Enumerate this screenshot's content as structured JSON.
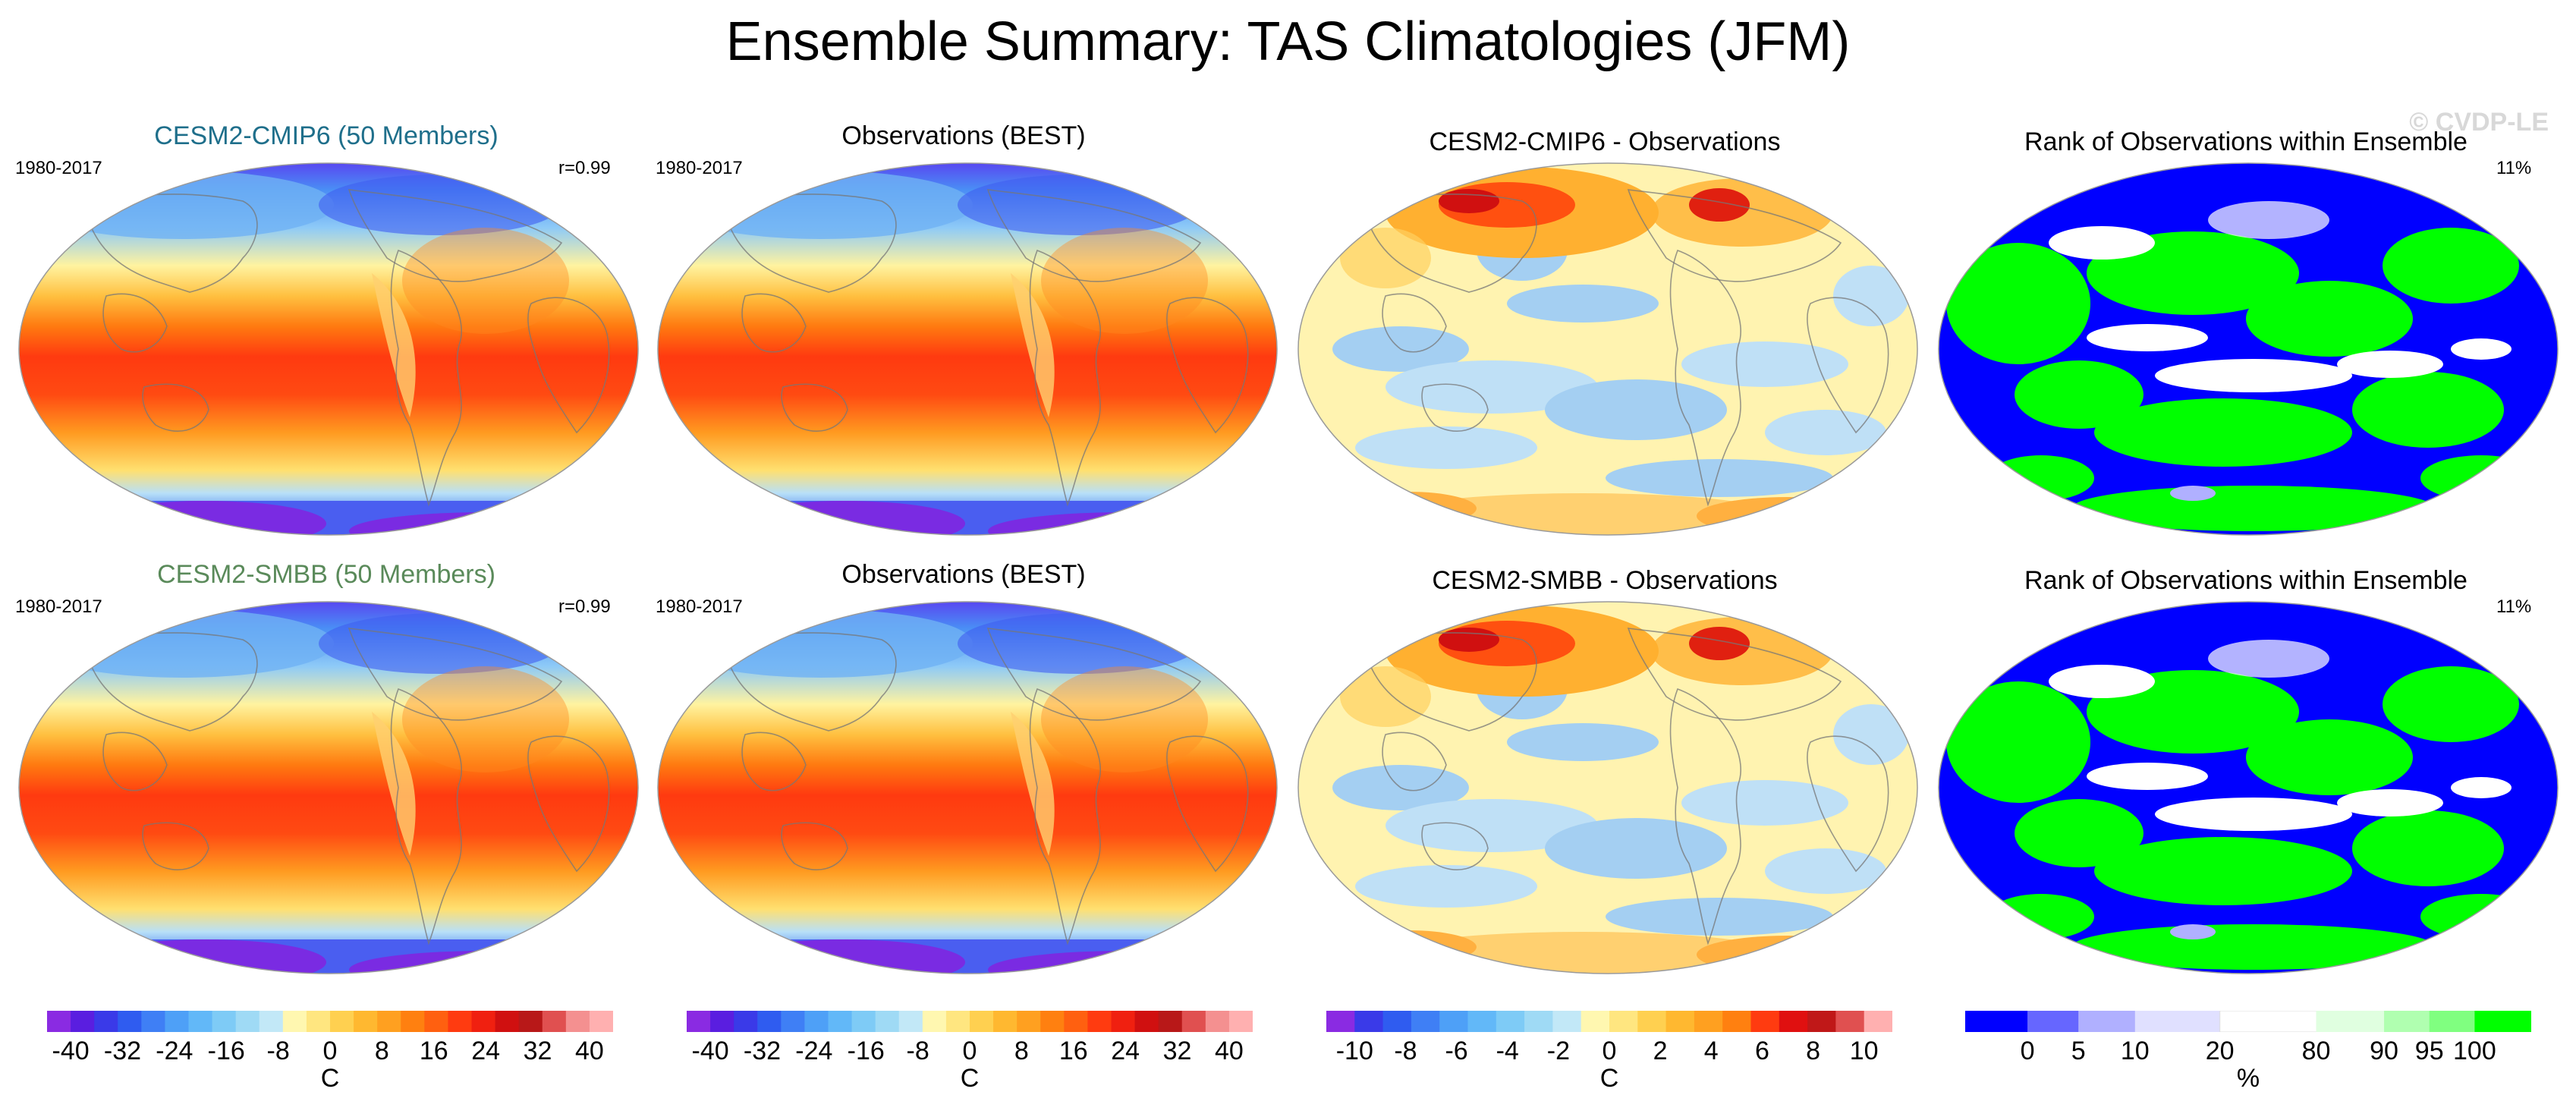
{
  "title": "Ensemble Summary: TAS Climatologies (JFM)",
  "watermark": "© CVDP-LE",
  "rows": [
    {
      "panels": [
        {
          "title": "CESM2-CMIP6 (50 Members)",
          "title_color": "#1f6f8b",
          "left_label": "1980-2017",
          "right_label": "r=0.99",
          "field": "clim"
        },
        {
          "title": "Observations (BEST)",
          "title_color": "#000000",
          "left_label": "1980-2017",
          "right_label": "",
          "field": "clim"
        },
        {
          "title": "CESM2-CMIP6 - Observations",
          "title_color": "#000000",
          "left_label": "",
          "right_label": "",
          "field": "diff"
        },
        {
          "title": "Rank of Observations within Ensemble",
          "title_color": "#000000",
          "left_label": "",
          "right_label": "11%",
          "field": "rank"
        }
      ]
    },
    {
      "panels": [
        {
          "title": "CESM2-SMBB (50 Members)",
          "title_color": "#5a8a5a",
          "left_label": "1980-2017",
          "right_label": "r=0.99",
          "field": "clim"
        },
        {
          "title": "Observations (BEST)",
          "title_color": "#000000",
          "left_label": "1980-2017",
          "right_label": "",
          "field": "clim"
        },
        {
          "title": "CESM2-SMBB - Observations",
          "title_color": "#000000",
          "left_label": "",
          "right_label": "",
          "field": "diff"
        },
        {
          "title": "Rank of Observations within Ensemble",
          "title_color": "#000000",
          "left_label": "",
          "right_label": "11%",
          "field": "rank"
        }
      ]
    }
  ],
  "colorbars": [
    {
      "ticks": [
        "-40",
        "-32",
        "-24",
        "-16",
        "-8",
        "0",
        "8",
        "16",
        "24",
        "32",
        "40"
      ],
      "unit": "C",
      "palette": "clim",
      "colors": [
        "#8a2be2",
        "#5a1ee0",
        "#3a3ae8",
        "#2f5cf0",
        "#3f7ff5",
        "#4ea0f7",
        "#62b8f8",
        "#7ecbf6",
        "#9fdaf5",
        "#c2e8f7",
        "#fff7b0",
        "#ffe680",
        "#ffd050",
        "#ffb830",
        "#ffa020",
        "#ff8010",
        "#ff6010",
        "#ff3b10",
        "#f02010",
        "#d01010",
        "#b81818",
        "#e05050",
        "#f49090",
        "#ffb0b0"
      ]
    },
    {
      "ticks": [
        "-40",
        "-32",
        "-24",
        "-16",
        "-8",
        "0",
        "8",
        "16",
        "24",
        "32",
        "40"
      ],
      "unit": "C",
      "palette": "clim",
      "colors": [
        "#8a2be2",
        "#5a1ee0",
        "#3a3ae8",
        "#2f5cf0",
        "#3f7ff5",
        "#4ea0f7",
        "#62b8f8",
        "#7ecbf6",
        "#9fdaf5",
        "#c2e8f7",
        "#fff7b0",
        "#ffe680",
        "#ffd050",
        "#ffb830",
        "#ffa020",
        "#ff8010",
        "#ff6010",
        "#ff3b10",
        "#f02010",
        "#d01010",
        "#b81818",
        "#e05050",
        "#f49090",
        "#ffb0b0"
      ]
    },
    {
      "ticks": [
        "-10",
        "-8",
        "-6",
        "-4",
        "-2",
        "0",
        "2",
        "4",
        "6",
        "8",
        "10"
      ],
      "unit": "C",
      "palette": "diff",
      "colors": [
        "#8a2be2",
        "#3a3ae8",
        "#2f5cf0",
        "#3f7ff5",
        "#4ea0f7",
        "#62b8f8",
        "#7ecbf6",
        "#9fdaf5",
        "#c2e8f7",
        "#fff7b0",
        "#ffe680",
        "#ffd050",
        "#ffb830",
        "#ffa020",
        "#ff8010",
        "#ff3b10",
        "#e01010",
        "#c01818",
        "#e05050",
        "#ffb0b0"
      ]
    },
    {
      "ticks": [
        "0",
        "5",
        "10",
        "20",
        "80",
        "90",
        "95",
        "100"
      ],
      "unit": "%",
      "palette": "rank",
      "colors": [
        "#0000ff",
        "#6666ff",
        "#b0b0ff",
        "#e0e0ff",
        "#ffffff",
        "#e0ffe0",
        "#b0ffb0",
        "#80ff80",
        "#00ff00"
      ]
    }
  ]
}
